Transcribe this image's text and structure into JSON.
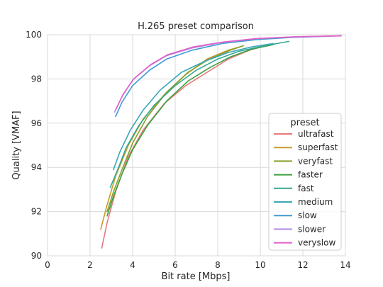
{
  "chart_data": {
    "type": "line",
    "title": "H.265 preset comparison",
    "xlabel": "Bit rate [Mbps]",
    "ylabel": "Quality [VMAF]",
    "xlim": [
      0,
      14
    ],
    "ylim": [
      90,
      100
    ],
    "xticks": [
      0,
      2,
      4,
      6,
      8,
      10,
      12,
      14
    ],
    "yticks": [
      90,
      92,
      94,
      96,
      98,
      100
    ],
    "grid": true,
    "legend": {
      "title": "preset",
      "position": "lower-right"
    },
    "series": [
      {
        "name": "ultrafast",
        "color": "#e8797c",
        "x": [
          2.55,
          2.8,
          3.2,
          3.8,
          4.5,
          5.5,
          6.5,
          7.5,
          8.5,
          9.5,
          10.4
        ],
        "y": [
          90.35,
          91.5,
          92.9,
          94.5,
          95.7,
          96.9,
          97.7,
          98.3,
          98.9,
          99.3,
          99.55
        ]
      },
      {
        "name": "superfast",
        "color": "#c99a2e",
        "x": [
          2.5,
          2.8,
          3.2,
          3.8,
          4.5,
          5.5,
          6.5,
          7.5,
          8.5,
          9.2
        ],
        "y": [
          91.2,
          92.3,
          93.6,
          95.0,
          96.2,
          97.3,
          98.2,
          98.9,
          99.3,
          99.5
        ]
      },
      {
        "name": "veryfast",
        "color": "#86a02c",
        "x": [
          2.8,
          3.1,
          3.5,
          4.0,
          4.7,
          5.6,
          6.6,
          7.6,
          8.6,
          9.2
        ],
        "y": [
          92.0,
          92.9,
          93.9,
          95.1,
          96.3,
          97.4,
          98.3,
          98.9,
          99.3,
          99.5
        ]
      },
      {
        "name": "faster",
        "color": "#3aa040",
        "x": [
          2.8,
          3.1,
          3.5,
          4.0,
          4.7,
          5.6,
          6.6,
          7.6,
          8.6,
          9.6,
          10.6
        ],
        "y": [
          91.8,
          92.7,
          93.7,
          94.8,
          95.9,
          97.0,
          97.9,
          98.5,
          99.0,
          99.35,
          99.55
        ]
      },
      {
        "name": "fast",
        "color": "#33a88e",
        "x": [
          2.95,
          3.3,
          3.7,
          4.3,
          5.0,
          6.0,
          7.0,
          8.0,
          9.0,
          10.2,
          11.35
        ],
        "y": [
          93.1,
          93.9,
          94.9,
          95.9,
          96.8,
          97.7,
          98.4,
          98.9,
          99.25,
          99.5,
          99.7
        ]
      },
      {
        "name": "medium",
        "color": "#3aa6b6",
        "x": [
          3.1,
          3.4,
          3.9,
          4.5,
          5.3,
          6.3,
          7.4,
          8.5,
          9.6,
          10.6
        ],
        "y": [
          93.9,
          94.7,
          95.7,
          96.6,
          97.5,
          98.3,
          98.8,
          99.2,
          99.45,
          99.6
        ]
      },
      {
        "name": "slow",
        "color": "#3f9ad3",
        "x": [
          3.2,
          3.5,
          4.0,
          4.8,
          5.6,
          6.8,
          8.2,
          9.8,
          11.5,
          13.8
        ],
        "y": [
          96.3,
          96.95,
          97.7,
          98.4,
          98.9,
          99.3,
          99.6,
          99.78,
          99.88,
          99.95
        ]
      },
      {
        "name": "slower",
        "color": "#b38ee6",
        "x": [
          3.15,
          3.5,
          4.0,
          4.8,
          5.6,
          6.8,
          8.2,
          9.8,
          11.5,
          13.8
        ],
        "y": [
          96.5,
          97.2,
          97.95,
          98.6,
          99.05,
          99.4,
          99.65,
          99.82,
          99.9,
          99.95
        ]
      },
      {
        "name": "veryslow",
        "color": "#e25fc9",
        "x": [
          3.2,
          3.55,
          4.05,
          4.85,
          5.65,
          6.85,
          8.25,
          9.85,
          11.55,
          13.8
        ],
        "y": [
          96.6,
          97.3,
          98.0,
          98.65,
          99.1,
          99.45,
          99.67,
          99.83,
          99.9,
          99.95
        ]
      }
    ]
  }
}
